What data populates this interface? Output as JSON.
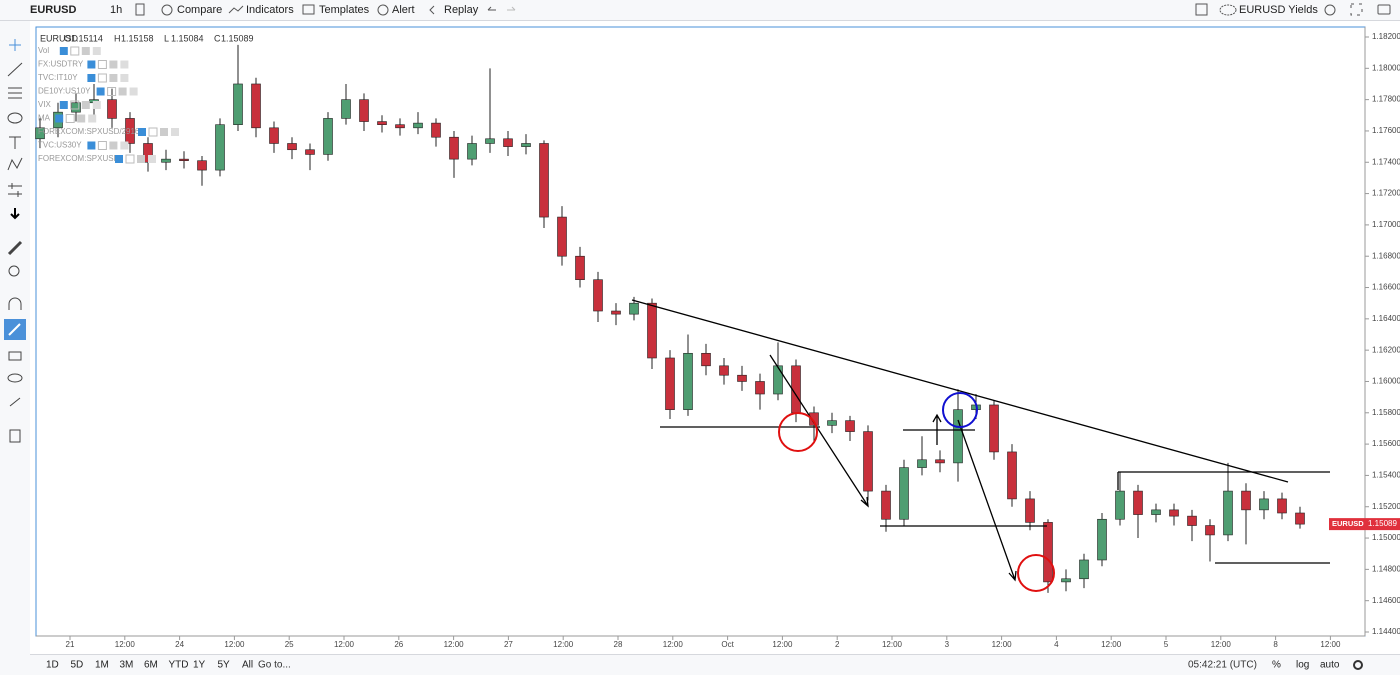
{
  "toolbar": {
    "symbol": "EURUSD",
    "interval": "1h",
    "buttons": [
      "Compare",
      "Indicators",
      "Templates",
      "Alert",
      "Replay"
    ],
    "layout": "EURUSD Yields"
  },
  "legend": {
    "symbol": "EURUSD",
    "ohlc": [
      {
        "label": "O",
        "value": 1.15114
      },
      {
        "label": "H",
        "value": 1.15158
      },
      {
        "label": "L",
        "value": 1.15084
      },
      {
        "label": "C",
        "value": 1.15089
      }
    ],
    "indicators": [
      "Vol",
      "FX:USDTRY",
      "TVC:IT10Y",
      "DE10Y:US10Y",
      "VIX",
      "MA",
      "FOREXCOM:SPXUSD/2916",
      "TVC:US30Y",
      "FOREXCOM:SPXUSD"
    ]
  },
  "chart_data": {
    "type": "candlestick",
    "up_color": "#4f9e72",
    "down_color": "#c8303c",
    "ylim": [
      1.1436,
      1.1826
    ],
    "yticks": [
      {
        "value": 1.182,
        "label": "1.18200"
      },
      {
        "value": 1.18,
        "label": "1.18000"
      },
      {
        "value": 1.178,
        "label": "1.17800"
      },
      {
        "value": 1.176,
        "label": "1.17600"
      },
      {
        "value": 1.174,
        "label": "1.17400"
      },
      {
        "value": 1.172,
        "label": "1.17200"
      },
      {
        "value": 1.17,
        "label": "1.17000"
      },
      {
        "value": 1.168,
        "label": "1.16800"
      },
      {
        "value": 1.166,
        "label": "1.16600"
      },
      {
        "value": 1.164,
        "label": "1.16400"
      },
      {
        "value": 1.162,
        "label": "1.16200"
      },
      {
        "value": 1.16,
        "label": "1.16000"
      },
      {
        "value": 1.158,
        "label": "1.15800"
      },
      {
        "value": 1.156,
        "label": "1.15600"
      },
      {
        "value": 1.154,
        "label": "1.15400"
      },
      {
        "value": 1.152,
        "label": "1.15200"
      },
      {
        "value": 1.15,
        "label": "1.15000"
      },
      {
        "value": 1.148,
        "label": "1.14800"
      },
      {
        "value": 1.146,
        "label": "1.14600"
      },
      {
        "value": 1.144,
        "label": "1.14400"
      }
    ],
    "time_labels": [
      "21",
      "12:00",
      "24",
      "12:00",
      "25",
      "12:00",
      "26",
      "12:00",
      "27",
      "12:00",
      "28",
      "12:00",
      "Oct",
      "12:00",
      "2",
      "12:00",
      "3",
      "12:00",
      "4",
      "12:00",
      "5",
      "12:00",
      "8",
      "12:00"
    ],
    "price_label": {
      "symbol": "EURUSD",
      "value": 1.15089
    },
    "candles": [
      [
        1.1755,
        1.1768,
        1.1749,
        1.1762
      ],
      [
        1.1762,
        1.1778,
        1.1756,
        1.1772
      ],
      [
        1.1772,
        1.1784,
        1.1766,
        1.1778
      ],
      [
        1.1778,
        1.179,
        1.177,
        1.178
      ],
      [
        1.178,
        1.1787,
        1.1762,
        1.1768
      ],
      [
        1.1768,
        1.1772,
        1.1746,
        1.1752
      ],
      [
        1.1752,
        1.1756,
        1.1734,
        1.174
      ],
      [
        1.174,
        1.1748,
        1.1735,
        1.1742
      ],
      [
        1.1742,
        1.1747,
        1.1736,
        1.1741
      ],
      [
        1.1741,
        1.1744,
        1.1725,
        1.1735
      ],
      [
        1.1735,
        1.1768,
        1.1731,
        1.1764
      ],
      [
        1.1764,
        1.1815,
        1.176,
        1.179
      ],
      [
        1.179,
        1.1794,
        1.1756,
        1.1762
      ],
      [
        1.1762,
        1.1766,
        1.1746,
        1.1752
      ],
      [
        1.1752,
        1.1756,
        1.1742,
        1.1748
      ],
      [
        1.1748,
        1.1752,
        1.1735,
        1.1745
      ],
      [
        1.1745,
        1.1772,
        1.1741,
        1.1768
      ],
      [
        1.1768,
        1.179,
        1.1764,
        1.178
      ],
      [
        1.178,
        1.1784,
        1.176,
        1.1766
      ],
      [
        1.1766,
        1.177,
        1.1759,
        1.1764
      ],
      [
        1.1764,
        1.1768,
        1.1757,
        1.1762
      ],
      [
        1.1762,
        1.1772,
        1.1758,
        1.1765
      ],
      [
        1.1765,
        1.1768,
        1.175,
        1.1756
      ],
      [
        1.1756,
        1.176,
        1.173,
        1.1742
      ],
      [
        1.1742,
        1.1757,
        1.1738,
        1.1752
      ],
      [
        1.1752,
        1.18,
        1.1746,
        1.1755
      ],
      [
        1.1755,
        1.176,
        1.1744,
        1.175
      ],
      [
        1.175,
        1.1758,
        1.1745,
        1.1752
      ],
      [
        1.1752,
        1.1754,
        1.1698,
        1.1705
      ],
      [
        1.1705,
        1.1712,
        1.1674,
        1.168
      ],
      [
        1.168,
        1.1686,
        1.166,
        1.1665
      ],
      [
        1.1665,
        1.167,
        1.1638,
        1.1645
      ],
      [
        1.1645,
        1.165,
        1.1636,
        1.1643
      ],
      [
        1.1643,
        1.1654,
        1.1639,
        1.165
      ],
      [
        1.165,
        1.1653,
        1.1608,
        1.1615
      ],
      [
        1.1615,
        1.162,
        1.1576,
        1.1582
      ],
      [
        1.1582,
        1.163,
        1.1578,
        1.1618
      ],
      [
        1.1618,
        1.1624,
        1.1604,
        1.161
      ],
      [
        1.161,
        1.1615,
        1.1598,
        1.1604
      ],
      [
        1.1604,
        1.161,
        1.1594,
        1.16
      ],
      [
        1.16,
        1.1605,
        1.1582,
        1.1592
      ],
      [
        1.1592,
        1.1625,
        1.1588,
        1.161
      ],
      [
        1.161,
        1.1614,
        1.1574,
        1.158
      ],
      [
        1.158,
        1.1584,
        1.1562,
        1.1572
      ],
      [
        1.1572,
        1.158,
        1.1567,
        1.1575
      ],
      [
        1.1575,
        1.1578,
        1.1562,
        1.1568
      ],
      [
        1.1568,
        1.1572,
        1.1524,
        1.153
      ],
      [
        1.153,
        1.1534,
        1.1504,
        1.1512
      ],
      [
        1.1512,
        1.155,
        1.1508,
        1.1545
      ],
      [
        1.1545,
        1.1565,
        1.154,
        1.155
      ],
      [
        1.155,
        1.1556,
        1.1542,
        1.1548
      ],
      [
        1.1548,
        1.1595,
        1.1536,
        1.1582
      ],
      [
        1.1582,
        1.1592,
        1.1576,
        1.1585
      ],
      [
        1.1585,
        1.1588,
        1.155,
        1.1555
      ],
      [
        1.1555,
        1.156,
        1.152,
        1.1525
      ],
      [
        1.1525,
        1.153,
        1.1505,
        1.151
      ],
      [
        1.151,
        1.1512,
        1.1465,
        1.1472
      ],
      [
        1.1472,
        1.148,
        1.1466,
        1.1474
      ],
      [
        1.1474,
        1.149,
        1.1468,
        1.1486
      ],
      [
        1.1486,
        1.1516,
        1.1482,
        1.1512
      ],
      [
        1.1512,
        1.1542,
        1.1508,
        1.153
      ],
      [
        1.153,
        1.1534,
        1.15,
        1.1515
      ],
      [
        1.1515,
        1.1522,
        1.151,
        1.1518
      ],
      [
        1.1518,
        1.1522,
        1.1508,
        1.1514
      ],
      [
        1.1514,
        1.1518,
        1.1498,
        1.1508
      ],
      [
        1.1508,
        1.1512,
        1.1485,
        1.1502
      ],
      [
        1.1502,
        1.1548,
        1.1498,
        1.153
      ],
      [
        1.153,
        1.1535,
        1.1496,
        1.1518
      ],
      [
        1.1518,
        1.153,
        1.1512,
        1.1525
      ],
      [
        1.1525,
        1.1529,
        1.1512,
        1.1516
      ],
      [
        1.1516,
        1.152,
        1.1506,
        1.15089
      ]
    ]
  },
  "bottom_bar": {
    "ranges": [
      "1D",
      "5D",
      "1M",
      "3M",
      "6M",
      "YTD",
      "1Y",
      "5Y",
      "All"
    ],
    "goto": "Go to...",
    "clock": "05:42:21 (UTC)",
    "options": [
      "%",
      "log",
      "auto"
    ]
  }
}
